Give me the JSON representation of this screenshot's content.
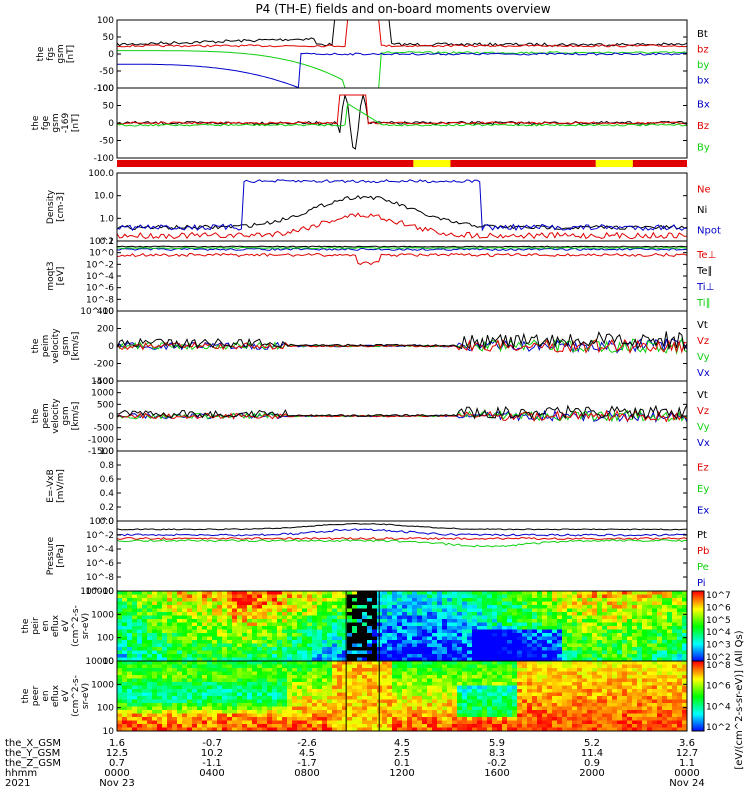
{
  "title": "P4 (TH-E) fields and on-board moments overview",
  "year": "2021",
  "colorbar_label": "[eV/(cm^2-s-sr-eV)] (All Qs)",
  "colors": {
    "black": "#000000",
    "red": "#e00000",
    "green": "#10d010",
    "blue": "#0000c8",
    "yellow": "#ffff00"
  },
  "panels": [
    {
      "id": "fgs",
      "ylabel": [
        "the",
        "fgs",
        "gsm",
        "[nT]"
      ],
      "ticks": [
        "100",
        "50",
        "0",
        "-50",
        "-100"
      ],
      "yrange": [
        -100,
        100
      ],
      "legend": [
        {
          "text": "Bt",
          "color": "#000000"
        },
        {
          "text": "bz",
          "color": "#e00000"
        },
        {
          "text": "by",
          "color": "#10d010"
        },
        {
          "text": "bx",
          "color": "#0000c8"
        }
      ]
    },
    {
      "id": "fge",
      "ylabel": [
        "the",
        "fge",
        "gsm",
        "-169",
        "[nT]"
      ],
      "ticks": [
        "100",
        "50",
        "0",
        "-50",
        "-100"
      ],
      "yrange": [
        -130,
        130
      ],
      "legend": [
        {
          "text": "Bx",
          "color": "#0000c8"
        },
        {
          "text": "Bz",
          "color": "#e00000"
        },
        {
          "text": "By",
          "color": "#10d010"
        }
      ]
    },
    {
      "id": "density",
      "ylabel": [
        "Density",
        "[cm-3]"
      ],
      "ticks": [
        "100.0",
        "10.0",
        "1.0",
        "0.1"
      ],
      "yrange": [
        0.1,
        100
      ],
      "log": true,
      "legend": [
        {
          "text": "Ne",
          "color": "#e00000"
        },
        {
          "text": "Ni",
          "color": "#000000"
        },
        {
          "text": "Npot",
          "color": "#0000c8"
        }
      ]
    },
    {
      "id": "temp",
      "ylabel": [
        "moqt3",
        "[eV]"
      ],
      "ticks": [
        "10^2",
        "10^0",
        "10^-2",
        "10^-4",
        "10^-6",
        "10^-8",
        "10^-10"
      ],
      "yrange": [
        1e-10,
        100.0
      ],
      "log": true,
      "legend": [
        {
          "text": "Te⊥",
          "color": "#e00000"
        },
        {
          "text": "Te∥",
          "color": "#000000"
        },
        {
          "text": "Ti⊥",
          "color": "#0000c8"
        },
        {
          "text": "Ti∥",
          "color": "#10d010"
        }
      ]
    },
    {
      "id": "peim",
      "ylabel": [
        "the",
        "peim",
        "velocity",
        "gsm",
        "[km/s]"
      ],
      "ticks": [
        "400",
        "200",
        "0",
        "-200",
        "-400"
      ],
      "yrange": [
        -400,
        400
      ],
      "legend": [
        {
          "text": "Vt",
          "color": "#000000"
        },
        {
          "text": "Vz",
          "color": "#e00000"
        },
        {
          "text": "Vy",
          "color": "#10d010"
        },
        {
          "text": "Vx",
          "color": "#0000c8"
        }
      ]
    },
    {
      "id": "peem",
      "ylabel": [
        "the",
        "peem",
        "velocity",
        "gsm",
        "[km/s]"
      ],
      "ticks": [
        "1500",
        "1000",
        "500",
        "0",
        "-500",
        "-1000",
        "-1500"
      ],
      "yrange": [
        -1500,
        1500
      ],
      "legend": [
        {
          "text": "Vt",
          "color": "#000000"
        },
        {
          "text": "Vz",
          "color": "#e00000"
        },
        {
          "text": "Vy",
          "color": "#10d010"
        },
        {
          "text": "Vx",
          "color": "#0000c8"
        }
      ]
    },
    {
      "id": "efield",
      "ylabel": [
        "E=-VxB",
        "[mV/m]"
      ],
      "ticks": [
        "1.0",
        "0.8",
        "0.6",
        "0.4",
        "0.2",
        "0.0"
      ],
      "yrange": [
        0,
        1
      ],
      "legend": [
        {
          "text": "Ez",
          "color": "#e00000"
        },
        {
          "text": "Ey",
          "color": "#10d010"
        },
        {
          "text": "Ex",
          "color": "#0000c8"
        }
      ]
    },
    {
      "id": "pressure",
      "ylabel": [
        "Pressure",
        "[nPa]"
      ],
      "ticks": [
        "10^0",
        "10^-2",
        "10^-4",
        "10^-6",
        "10^-8",
        "10^-10"
      ],
      "yrange": [
        1e-10,
        1
      ],
      "log": true,
      "legend": [
        {
          "text": "Pt",
          "color": "#000000"
        },
        {
          "text": "Pb",
          "color": "#e00000"
        },
        {
          "text": "Pe",
          "color": "#10d010"
        },
        {
          "text": "Pi",
          "color": "#0000c8"
        }
      ]
    },
    {
      "id": "peir",
      "ylabel": [
        "the",
        "peir",
        "en",
        "eflux",
        "eV",
        "(cm^2-s-",
        "sr-eV)"
      ],
      "ticks": [
        "10000",
        "1000",
        "100",
        "10"
      ],
      "yrange": [
        5,
        25000
      ],
      "log": true,
      "colorbar_ticks": [
        "10^7",
        "10^6",
        "10^5",
        "10^4",
        "10^3",
        "10^2"
      ]
    },
    {
      "id": "peer",
      "ylabel": [
        "the",
        "peer",
        "en",
        "eflux",
        "eV",
        "(cm^2-s-",
        "sr-eV)"
      ],
      "ticks": [
        "10000",
        "1000",
        "100",
        "10"
      ],
      "yrange": [
        5,
        25000
      ],
      "log": true,
      "colorbar_ticks": [
        "10^8",
        "10^6",
        "10^4",
        "10^2"
      ]
    }
  ],
  "mode_bar": [
    {
      "from": 0.0,
      "to": 0.52,
      "color": "#e00000"
    },
    {
      "from": 0.52,
      "to": 0.585,
      "color": "#ffff00"
    },
    {
      "from": 0.585,
      "to": 0.84,
      "color": "#e00000"
    },
    {
      "from": 0.84,
      "to": 0.905,
      "color": "#ffff00"
    },
    {
      "from": 0.905,
      "to": 1.0,
      "color": "#e00000"
    }
  ],
  "x_axis": {
    "rows": [
      {
        "name": "the_X_GSM",
        "values": [
          "1.6",
          "-0.7",
          "-2.6",
          "4.5",
          "5.9",
          "5.2",
          "3.6"
        ]
      },
      {
        "name": "the_Y_GSM",
        "values": [
          "12.5",
          "10.2",
          "4.5",
          "2.5",
          "8.3",
          "11.4",
          "12.7"
        ]
      },
      {
        "name": "the_Z_GSM",
        "values": [
          "0.7",
          "-1.1",
          "-1.7",
          "0.1",
          "-0.2",
          "0.9",
          "1.1"
        ]
      },
      {
        "name": "hhmm",
        "values": [
          "0000",
          "0400",
          "0800",
          "1200",
          "1600",
          "2000",
          "0000"
        ]
      }
    ],
    "start_date": "Nov 23",
    "end_date": "Nov 24"
  }
}
